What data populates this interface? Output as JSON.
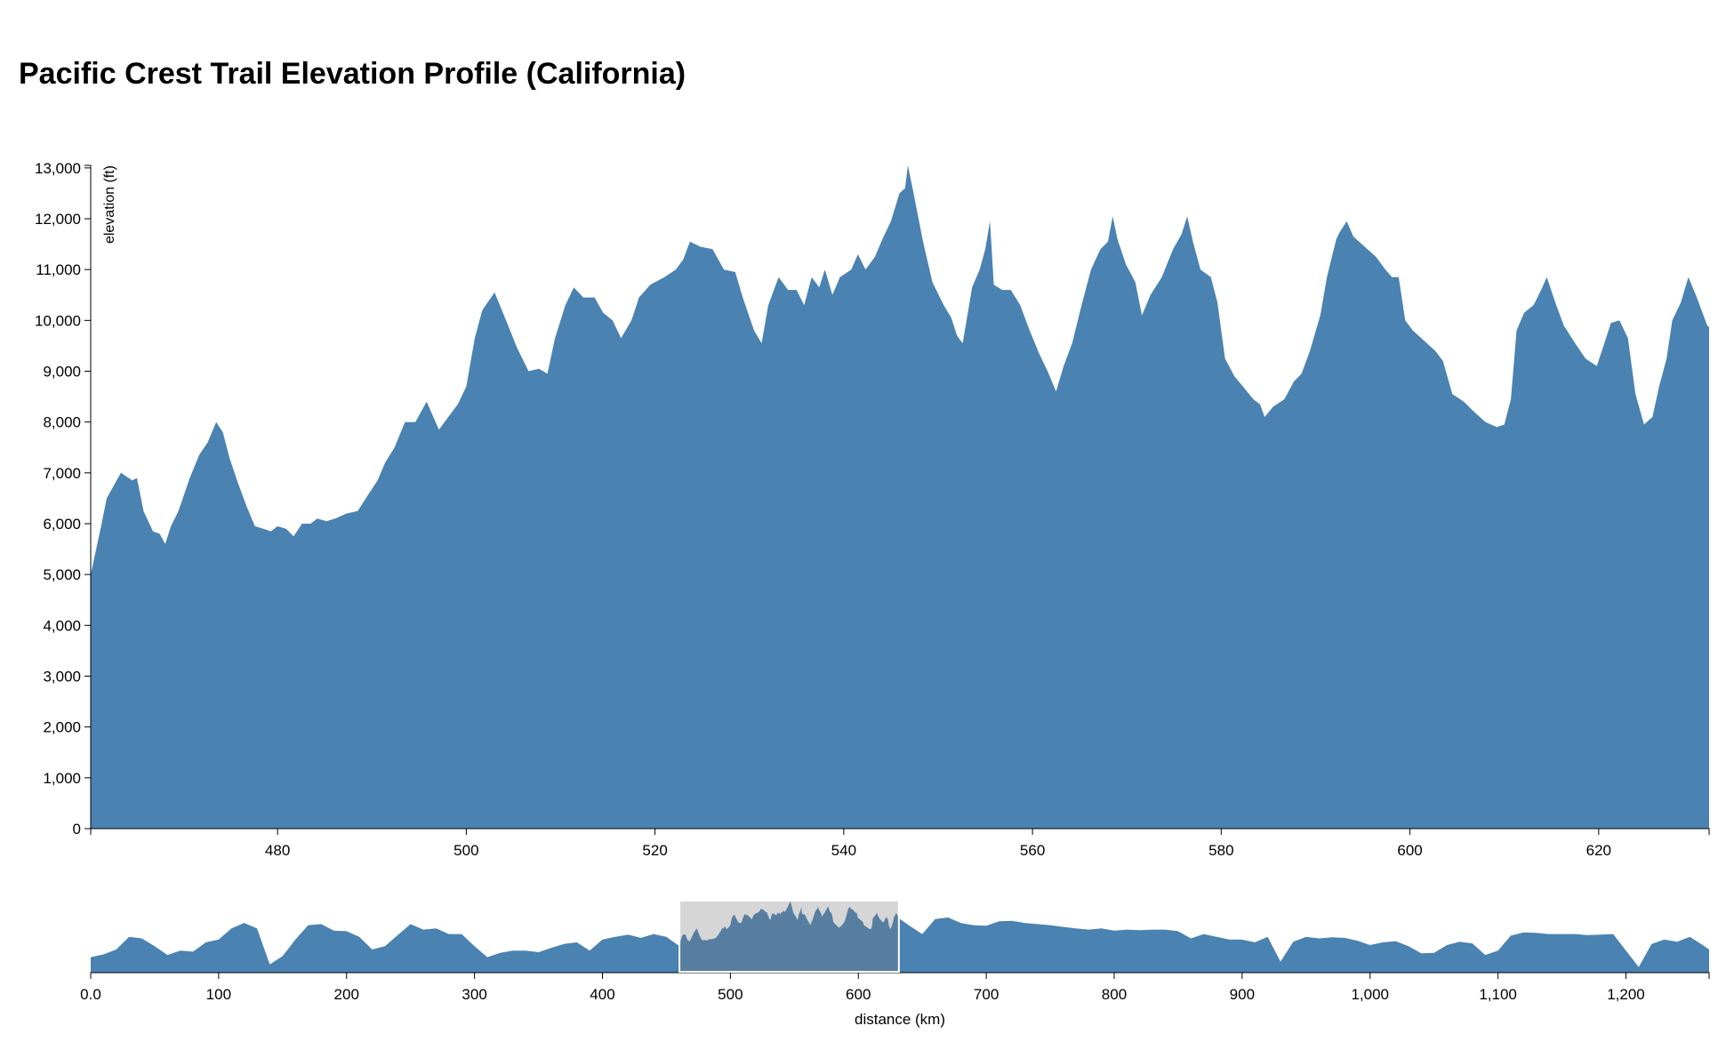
{
  "chart_data": {
    "type": "area",
    "title": "Pacific Crest Trail Elevation Profile (California)",
    "color": "#4a82b2",
    "x": [
      0,
      10,
      20,
      30,
      40,
      50,
      60,
      70,
      80,
      90,
      100,
      110,
      120,
      130,
      140,
      150,
      160,
      170,
      180,
      190,
      200,
      210,
      220,
      230,
      240,
      250,
      260,
      270,
      280,
      290,
      300,
      310,
      320,
      330,
      340,
      350,
      360,
      370,
      380,
      390,
      400,
      410,
      420,
      430,
      440,
      450,
      459,
      460.2,
      461.3,
      461.9,
      463.4,
      464.6,
      465.1,
      465.8,
      466.8,
      467.5,
      468.1,
      468.7,
      469.5,
      470.7,
      471.7,
      472.6,
      473.5,
      474.2,
      474.9,
      475.8,
      476.7,
      477.6,
      478.5,
      479.3,
      480.0,
      480.9,
      481.7,
      482.6,
      483.5,
      484.2,
      485.2,
      486.1,
      487.3,
      488.5,
      489.7,
      490.6,
      491.4,
      492.4,
      493.5,
      494.6,
      495.8,
      497.1,
      498.3,
      499.1,
      500.0,
      500.9,
      501.7,
      503.0,
      504.1,
      505.4,
      506.6,
      507.7,
      508.6,
      509.4,
      510.5,
      511.4,
      512.4,
      513.6,
      514.5,
      515.5,
      516.4,
      517.5,
      518.3,
      519.5,
      521.0,
      522.2,
      523.0,
      523.7,
      524.8,
      526.1,
      527.3,
      528.5,
      529.3,
      530.5,
      531.3,
      532.0,
      533.1,
      534.1,
      535.0,
      535.8,
      536.6,
      537.4,
      538.0,
      538.8,
      539.6,
      540.8,
      541.5,
      542.3,
      543.3,
      544.1,
      545.0,
      545.9,
      546.5,
      546.8,
      547.4,
      548.4,
      549.4,
      550.6,
      551.4,
      552.0,
      552.6,
      553.6,
      554.4,
      555.0,
      555.5,
      555.9,
      556.8,
      557.7,
      558.7,
      559.7,
      560.7,
      561.6,
      562.5,
      563.3,
      564.2,
      565.2,
      566.2,
      567.2,
      568.0,
      568.5,
      569.0,
      569.9,
      570.9,
      571.6,
      572.5,
      573.7,
      574.9,
      575.8,
      576.4,
      577.0,
      577.8,
      578.9,
      579.6,
      580.4,
      581.4,
      582.3,
      583.4,
      584.1,
      584.6,
      585.5,
      586.7,
      587.7,
      588.5,
      589.4,
      590.5,
      591.2,
      592.2,
      592.6,
      593.3,
      594.0,
      595.2,
      596.4,
      597.4,
      598.1,
      598.8,
      599.5,
      600.3,
      601.5,
      602.7,
      603.5,
      604.5,
      605.7,
      606.8,
      608.0,
      609.2,
      610.0,
      610.7,
      611.3,
      612.1,
      613.1,
      613.9,
      614.5,
      615.5,
      616.3,
      617.5,
      618.6,
      619.8,
      620.6,
      621.3,
      622.2,
      623.1,
      623.9,
      624.8,
      625.7,
      626.4,
      627.2,
      627.8,
      628.7,
      629.5,
      630.4,
      631.5,
      640,
      650,
      660,
      670,
      680,
      690,
      700,
      710,
      720,
      730,
      740,
      750,
      760,
      770,
      780,
      790,
      800,
      810,
      820,
      830,
      840,
      850,
      860,
      870,
      880,
      890,
      900,
      910,
      920,
      930,
      940,
      950,
      960,
      970,
      980,
      990,
      1000,
      1010,
      1020,
      1030,
      1040,
      1050,
      1060,
      1070,
      1080,
      1090,
      1100,
      1110,
      1120,
      1130,
      1140,
      1150,
      1160,
      1170,
      1180,
      1190,
      1200,
      1210,
      1220,
      1230,
      1240,
      1250,
      1260,
      1265
    ],
    "values": [
      2800,
      3300,
      4200,
      6500,
      6200,
      4800,
      3200,
      4000,
      3800,
      5500,
      6000,
      8000,
      9000,
      8000,
      1500,
      3000,
      6000,
      8600,
      8800,
      7600,
      7500,
      6500,
      4200,
      4800,
      6800,
      8800,
      7800,
      8000,
      7000,
      7000,
      4800,
      2800,
      3600,
      4000,
      4000,
      3700,
      4500,
      5200,
      5500,
      4000,
      6000,
      6500,
      6900,
      6300,
      7000,
      6500,
      5000,
      5000,
      5950,
      6500,
      7000,
      6850,
      6900,
      6250,
      5850,
      5800,
      5600,
      5950,
      6250,
      6900,
      7350,
      7600,
      8000,
      7800,
      7300,
      6800,
      6350,
      5950,
      5900,
      5850,
      5950,
      5900,
      5750,
      6000,
      6000,
      6100,
      6050,
      6100,
      6200,
      6250,
      6600,
      6850,
      7200,
      7500,
      8000,
      8000,
      8400,
      7850,
      8150,
      8350,
      8700,
      9650,
      10200,
      10550,
      10050,
      9450,
      9000,
      9050,
      8950,
      9650,
      10300,
      10650,
      10450,
      10450,
      10150,
      10000,
      9650,
      10000,
      10450,
      10700,
      10850,
      11000,
      11200,
      11550,
      11450,
      11400,
      11000,
      10950,
      10450,
      9800,
      9550,
      10300,
      10850,
      10600,
      10600,
      10300,
      10850,
      10650,
      11000,
      10500,
      10850,
      11000,
      11300,
      11000,
      11250,
      11600,
      11950,
      12500,
      12600,
      13050,
      12500,
      11550,
      10750,
      10300,
      10050,
      9700,
      9550,
      10650,
      11000,
      11400,
      11950,
      10700,
      10600,
      10600,
      10300,
      9800,
      9350,
      9000,
      8600,
      9100,
      9550,
      10300,
      11000,
      11400,
      11550,
      12050,
      11600,
      11100,
      10750,
      10100,
      10500,
      10850,
      11400,
      11700,
      12050,
      11550,
      11000,
      10850,
      10350,
      9250,
      8900,
      8700,
      8450,
      8350,
      8100,
      8300,
      8450,
      8800,
      8950,
      9400,
      10100,
      10850,
      11600,
      11750,
      11950,
      11650,
      11450,
      11250,
      11000,
      10850,
      10850,
      10000,
      9800,
      9600,
      9400,
      9200,
      8550,
      8400,
      8200,
      8000,
      7900,
      7950,
      8450,
      9800,
      10150,
      10300,
      10600,
      10850,
      10300,
      9900,
      9550,
      9250,
      9100,
      9550,
      9950,
      10000,
      9650,
      8550,
      7950,
      8100,
      8700,
      9250,
      10000,
      10350,
      10850,
      10450,
      9900,
      8500,
      7000,
      9700,
      10000,
      9000,
      8600,
      8500,
      9300,
      9400,
      9000,
      8800,
      8600,
      8300,
      8000,
      7800,
      8000,
      7600,
      7800,
      7700,
      7800,
      7800,
      7500,
      6200,
      7000,
      6500,
      6000,
      6000,
      5500,
      6500,
      2000,
      5600,
      6500,
      6200,
      6400,
      6300,
      5800,
      5000,
      5500,
      5700,
      4800,
      3500,
      3600,
      5000,
      5600,
      5300,
      3200,
      4000,
      6700,
      7300,
      7200,
      7000,
      7000,
      7000,
      6800,
      6900,
      7000,
      4000,
      1000,
      5200,
      6000,
      5600,
      6500,
      5000,
      4200
    ],
    "focus": {
      "xlim": [
        460.2,
        631.7
      ],
      "ylim": [
        0,
        13050
      ],
      "ylabel": "elevation (ft)",
      "xticks": [
        480,
        500,
        520,
        540,
        560,
        580,
        600,
        620
      ],
      "yticks": [
        0,
        {
          "value": 1000,
          "label": "1,000"
        },
        {
          "value": 2000,
          "label": "2,000"
        },
        {
          "value": 3000,
          "label": "3,000"
        },
        {
          "value": 4000,
          "label": "4,000"
        },
        {
          "value": 5000,
          "label": "5,000"
        },
        {
          "value": 6000,
          "label": "6,000"
        },
        {
          "value": 7000,
          "label": "7,000"
        },
        {
          "value": 8000,
          "label": "8,000"
        },
        {
          "value": 9000,
          "label": "9,000"
        },
        {
          "value": 10000,
          "label": "10,000"
        },
        {
          "value": 11000,
          "label": "11,000"
        },
        {
          "value": 12000,
          "label": "12,000"
        },
        {
          "value": 13000,
          "label": "13,000"
        }
      ]
    },
    "context": {
      "xlim": [
        0,
        1265
      ],
      "xlabel": "distance (km)",
      "xticks": [
        {
          "value": 0,
          "label": "0.0"
        },
        100,
        200,
        300,
        400,
        500,
        600,
        700,
        800,
        900,
        {
          "value": 1000,
          "label": "1,000"
        },
        {
          "value": 1100,
          "label": "1,100"
        },
        {
          "value": 1200,
          "label": "1,200"
        }
      ]
    }
  }
}
